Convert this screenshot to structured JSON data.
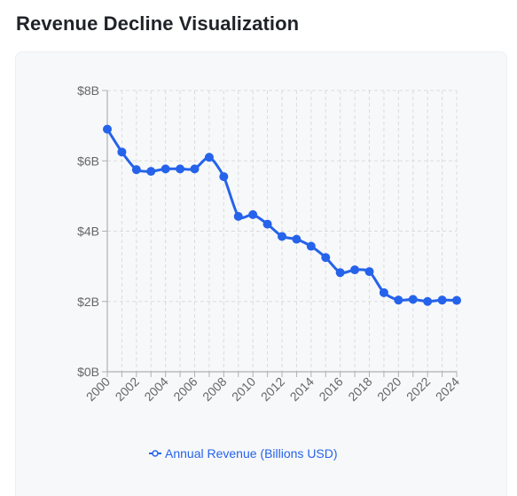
{
  "page": {
    "title": "Revenue Decline Visualization"
  },
  "colors": {
    "series": "#2563eb",
    "grid": "#dcdcdc",
    "axis": "#b0b0b0",
    "tick_text": "#666666",
    "card_bg": "#f7f8fa"
  },
  "chart_data": {
    "type": "line",
    "x": [
      2000,
      2001,
      2002,
      2003,
      2004,
      2005,
      2006,
      2007,
      2008,
      2009,
      2010,
      2011,
      2012,
      2013,
      2014,
      2015,
      2016,
      2017,
      2018,
      2019,
      2020,
      2021,
      2022,
      2023,
      2024
    ],
    "series": [
      {
        "name": "Annual Revenue (Billions USD)",
        "values": [
          6.9,
          6.25,
          5.75,
          5.7,
          5.77,
          5.77,
          5.77,
          6.1,
          5.55,
          4.42,
          4.47,
          4.2,
          3.85,
          3.77,
          3.57,
          3.25,
          2.82,
          2.9,
          2.85,
          2.25,
          2.04,
          2.06,
          2.0,
          2.04,
          2.03
        ]
      }
    ],
    "x_ticks": [
      "2000",
      "2002",
      "2004",
      "2006",
      "2008",
      "2010",
      "2012",
      "2014",
      "2016",
      "2018",
      "2020",
      "2022",
      "2024"
    ],
    "y_ticks": [
      "$0B",
      "$2B",
      "$4B",
      "$6B",
      "$8B"
    ],
    "y_tick_values": [
      0,
      2,
      4,
      6,
      8
    ],
    "ylim": [
      0,
      8
    ],
    "xlim": [
      2000,
      2024
    ],
    "grid": true,
    "grid_style": "dashed",
    "legend_position": "bottom-center",
    "xlabel": "",
    "ylabel": ""
  }
}
